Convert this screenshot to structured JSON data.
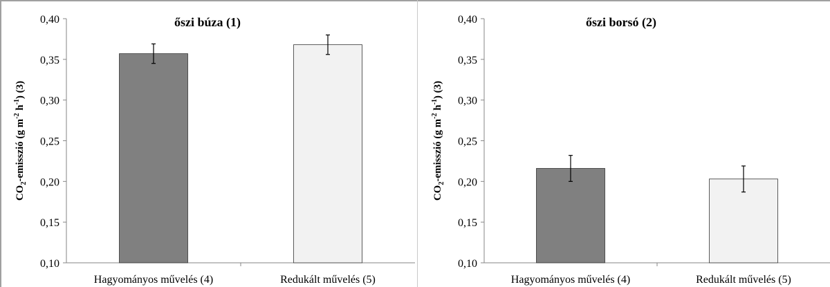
{
  "chart_data": [
    {
      "type": "bar",
      "title": "őszi búza (1)",
      "ylabel": "CO2-emisszió (g m-2 h-1) (3)",
      "ylim": [
        0.1,
        0.4
      ],
      "yticks": [
        "0,10",
        "0,15",
        "0,20",
        "0,25",
        "0,30",
        "0,35",
        "0,40"
      ],
      "categories": [
        "Hagyományos művelés (4)",
        "Redukált művelés (5)"
      ],
      "values": [
        0.357,
        0.368
      ],
      "errors": [
        0.012,
        0.012
      ],
      "colors": [
        "#808080",
        "#f2f2f2"
      ]
    },
    {
      "type": "bar",
      "title": "őszi borsó (2)",
      "ylabel": "CO2-emisszió (g m-2 h-1) (3)",
      "ylim": [
        0.1,
        0.4
      ],
      "yticks": [
        "0,10",
        "0,15",
        "0,20",
        "0,25",
        "0,30",
        "0,35",
        "0,40"
      ],
      "categories": [
        "Hagyományos művelés (4)",
        "Redukált művelés (5)"
      ],
      "values": [
        0.216,
        0.203
      ],
      "errors": [
        0.016,
        0.016
      ],
      "colors": [
        "#808080",
        "#f2f2f2"
      ]
    }
  ]
}
